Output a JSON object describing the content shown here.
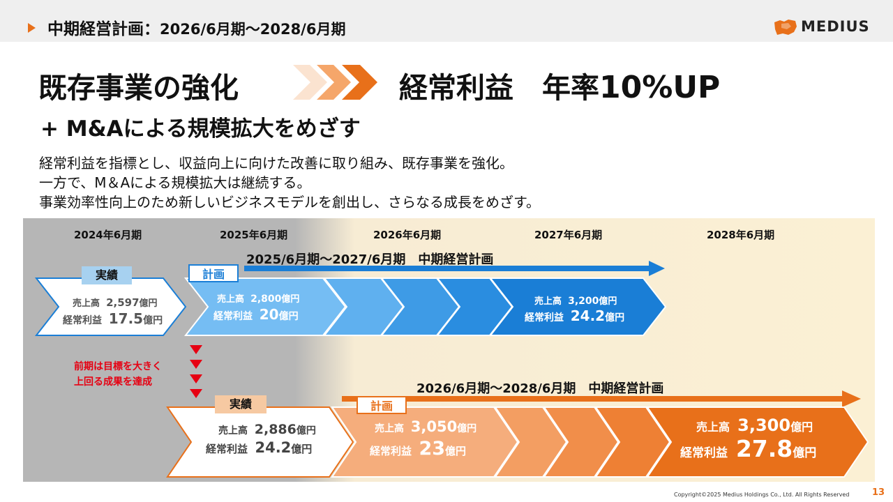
{
  "header": {
    "title_main": "中期経営計画：",
    "title_range": "2026/6月期～2028/6月期",
    "logo_text": "MEDIUS"
  },
  "headline": {
    "left": "既存事業の強化",
    "right_a": "経常利益　年率",
    "right_b": "10%UP",
    "sub": "+ M&Aによる規模拡大をめざす"
  },
  "body_lines": [
    "経常利益を指標とし、収益向上に向けた改善に取り組み、既存事業を強化。",
    "一方で、M＆Aによる規模拡大は継続する。",
    "事業効率性向上のため新しいビジネスモデルを創出し、さらなる成長をめざす。"
  ],
  "timeline": {
    "years": [
      "2024年6月期",
      "2025年6月期",
      "2026年6月期",
      "2027年6月期",
      "2028年6月期"
    ],
    "plan_prev": {
      "title": "2025/6月期～2027/6月期　中期経営計画",
      "actual_tag": "実績",
      "plan_tag": "計画",
      "actual": {
        "sales_label": "売上高",
        "sales_value": "2,597",
        "profit_label": "経常利益",
        "profit_value": "17.5",
        "unit": "億円"
      },
      "plan_start": {
        "sales_label": "売上高",
        "sales_value": "2,800",
        "profit_label": "経常利益",
        "profit_value": "20",
        "unit": "億円"
      },
      "plan_end": {
        "sales_label": "売上高",
        "sales_value": "3,200",
        "profit_label": "経常利益",
        "profit_value": "24.2",
        "unit": "億円"
      }
    },
    "note": [
      "前期は目標を大きく",
      "上回る成果を達成"
    ],
    "plan_new": {
      "title": "2026/6月期～2028/6月期　中期経営計画",
      "actual_tag": "実績",
      "plan_tag": "計画",
      "actual": {
        "sales_label": "売上高",
        "sales_value": "2,886",
        "profit_label": "経常利益",
        "profit_value": "24.2",
        "unit": "億円"
      },
      "plan_start": {
        "sales_label": "売上高",
        "sales_value": "3,050",
        "profit_label": "経常利益",
        "profit_value": "23",
        "unit": "億円"
      },
      "plan_end": {
        "sales_label": "売上高",
        "sales_value": "3,300",
        "profit_label": "経常利益",
        "profit_value": "27.8",
        "unit": "億円"
      }
    }
  },
  "footer": {
    "copyright": "Copyright©2025 Medius Holdings Co., Ltd. All Rights Reserved",
    "page": "13"
  },
  "colors": {
    "accent_orange": "#e8701a",
    "plan_blue": "#1a7ed6",
    "note_red": "#e60012"
  }
}
